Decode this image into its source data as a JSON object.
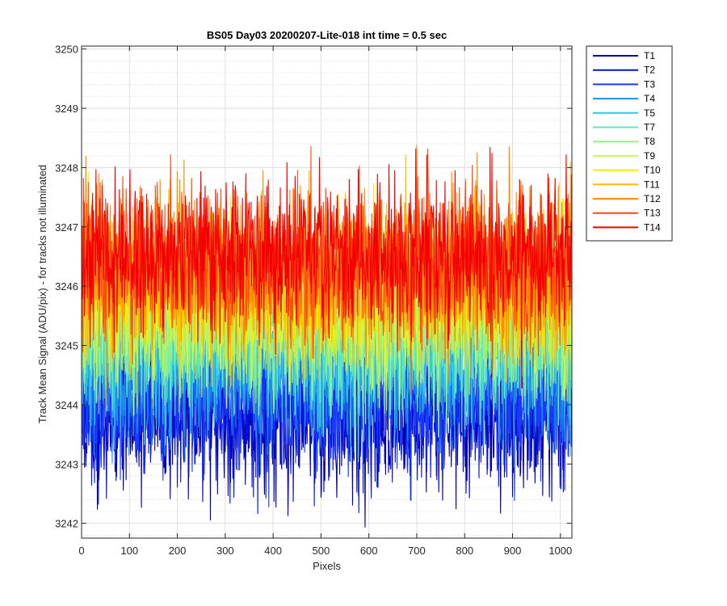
{
  "chart_data": {
    "type": "line",
    "title": "BS05 Day03 20200207-Lite-018 int time = 0.5 sec",
    "xlabel": "Pixels",
    "ylabel": "Track Mean Signal (ADU/pix) - for tracks not illuminated",
    "xlim": [
      0,
      1024
    ],
    "ylim": [
      3241.75,
      3250.05
    ],
    "xticks": [
      0,
      100,
      200,
      300,
      400,
      500,
      600,
      700,
      800,
      900,
      1000
    ],
    "yticks": [
      3242,
      3243,
      3244,
      3245,
      3246,
      3247,
      3248,
      3249,
      3250
    ],
    "xtick_labels": [
      "0",
      "100",
      "200",
      "300",
      "400",
      "500",
      "600",
      "700",
      "800",
      "900",
      "1000"
    ],
    "ytick_labels": [
      "3242",
      "3243",
      "3244",
      "3245",
      "3246",
      "3247",
      "3248",
      "3249",
      "3250"
    ],
    "grid": true,
    "legend_location": "outside-top-right",
    "n_points": 1024,
    "series": [
      {
        "name": "T1",
        "color": "#0000aa",
        "mean": 3243.8,
        "noise_sd": 0.62,
        "seed": 11
      },
      {
        "name": "T2",
        "color": "#0010d8",
        "mean": 3244.0,
        "noise_sd": 0.62,
        "seed": 23
      },
      {
        "name": "T3",
        "color": "#1a3cff",
        "mean": 3244.2,
        "noise_sd": 0.62,
        "seed": 37
      },
      {
        "name": "T4",
        "color": "#1e8fe6",
        "mean": 3244.6,
        "noise_sd": 0.62,
        "seed": 41
      },
      {
        "name": "T5",
        "color": "#33c6e6",
        "mean": 3244.9,
        "noise_sd": 0.62,
        "seed": 53
      },
      {
        "name": "T7",
        "color": "#5ee8c0",
        "mean": 3245.2,
        "noise_sd": 0.64,
        "seed": 67
      },
      {
        "name": "T8",
        "color": "#96f08c",
        "mean": 3245.4,
        "noise_sd": 0.64,
        "seed": 71
      },
      {
        "name": "T9",
        "color": "#c8f55a",
        "mean": 3245.6,
        "noise_sd": 0.64,
        "seed": 83
      },
      {
        "name": "T10",
        "color": "#f0f000",
        "mean": 3245.9,
        "noise_sd": 0.66,
        "seed": 97
      },
      {
        "name": "T11",
        "color": "#ffbf00",
        "mean": 3246.1,
        "noise_sd": 0.66,
        "seed": 101
      },
      {
        "name": "T12",
        "color": "#ff8c00",
        "mean": 3246.3,
        "noise_sd": 0.66,
        "seed": 113
      },
      {
        "name": "T13",
        "color": "#ff4a14",
        "mean": 3246.4,
        "noise_sd": 0.64,
        "seed": 127
      },
      {
        "name": "T14",
        "color": "#f50000",
        "mean": 3246.5,
        "noise_sd": 0.62,
        "seed": 131
      }
    ]
  }
}
